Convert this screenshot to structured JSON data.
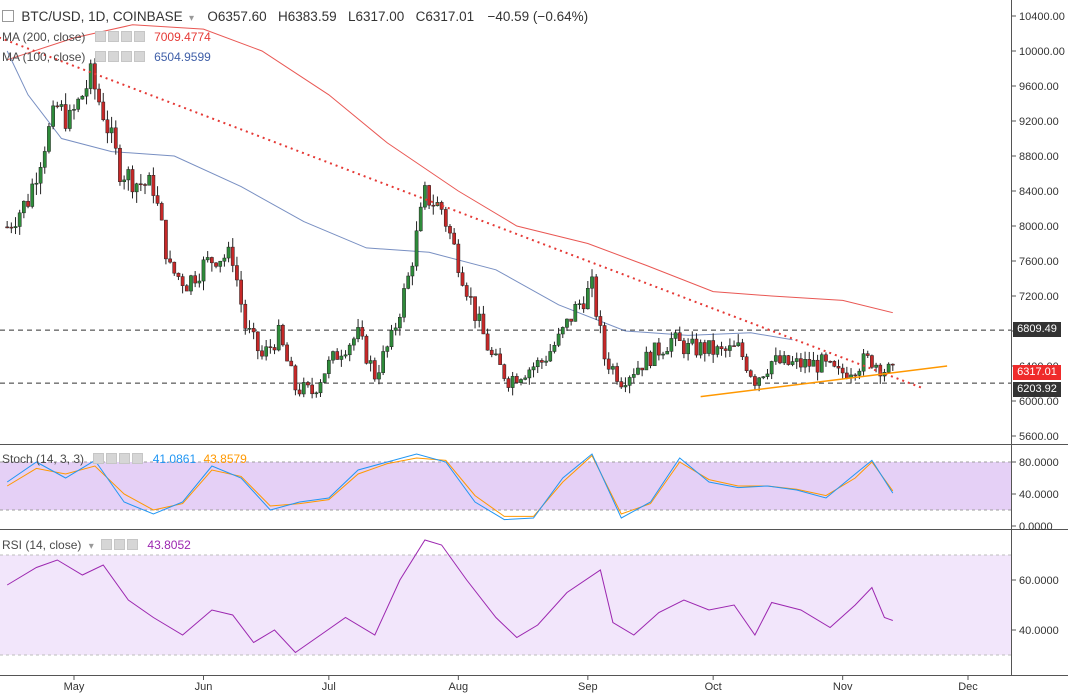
{
  "header": {
    "symbol": "BTC/USD, 1D, COINBASE",
    "ohlc_open_label": "O",
    "ohlc_open": "6357.60",
    "ohlc_high_label": "H",
    "ohlc_high": "6383.59",
    "ohlc_low_label": "L",
    "ohlc_low": "6317.00",
    "ohlc_close_label": "C",
    "ohlc_close": "6317.01",
    "change": "−40.59 (−0.64%)"
  },
  "indicators": {
    "ma200": {
      "label": "MA (200, close)",
      "value": "7009.4774",
      "color": "#e53935"
    },
    "ma100": {
      "label": "MA (100, close)",
      "value": "6504.9599",
      "color": "#3f5fa8"
    },
    "stoch": {
      "label": "Stoch (14, 3, 3)",
      "k_value": "41.0861",
      "d_value": "43.8579",
      "k_color": "#2196f3",
      "d_color": "#ff9800"
    },
    "rsi": {
      "label": "RSI (14, close)",
      "value": "43.8052",
      "color": "#9c27b0"
    }
  },
  "price_tags": {
    "resistance": "6809.49",
    "current": "6317.01",
    "support": "6203.92"
  },
  "colors": {
    "up": "#26a69a",
    "down": "#ef5350",
    "candle_up": "#2e8b3a",
    "candle_down": "#c62828",
    "trendline": "#e53935",
    "support_line": "#ff9800",
    "stoch_band": "#e0c8f5",
    "rsi_band": "#f2e6fb"
  },
  "chart_data": [
    {
      "type": "candlestick",
      "title": "BTC/USD, 1D, COINBASE",
      "x_ticks": [
        "May",
        "Jun",
        "Jul",
        "Aug",
        "Sep",
        "Oct",
        "Nov",
        "Dec"
      ],
      "y_ticks": [
        "10400.00",
        "10000.00",
        "9600.00",
        "9200.00",
        "8800.00",
        "8400.00",
        "8000.00",
        "7600.00",
        "7200.00",
        "6800.00",
        "6400.00",
        "6000.00",
        "5600.00"
      ],
      "ylim": [
        5550,
        10500
      ],
      "horizontal_levels": [
        6809.49,
        6203.92
      ],
      "close_path": [
        {
          "x": "2018-04-15",
          "y": 7990
        },
        {
          "x": "2018-04-20",
          "y": 8300
        },
        {
          "x": "2018-04-24",
          "y": 8950
        },
        {
          "x": "2018-04-27",
          "y": 9350
        },
        {
          "x": "2018-04-30",
          "y": 9200
        },
        {
          "x": "2018-05-05",
          "y": 9700
        },
        {
          "x": "2018-05-08",
          "y": 9300
        },
        {
          "x": "2018-05-12",
          "y": 8650
        },
        {
          "x": "2018-05-16",
          "y": 8500
        },
        {
          "x": "2018-05-20",
          "y": 8450
        },
        {
          "x": "2018-05-24",
          "y": 7500
        },
        {
          "x": "2018-05-28",
          "y": 7350
        },
        {
          "x": "2018-06-01",
          "y": 7550
        },
        {
          "x": "2018-06-04",
          "y": 7650
        },
        {
          "x": "2018-06-08",
          "y": 7650
        },
        {
          "x": "2018-06-11",
          "y": 6850
        },
        {
          "x": "2018-06-15",
          "y": 6500
        },
        {
          "x": "2018-06-19",
          "y": 6750
        },
        {
          "x": "2018-06-23",
          "y": 6150
        },
        {
          "x": "2018-06-27",
          "y": 6100
        },
        {
          "x": "2018-06-30",
          "y": 6350
        },
        {
          "x": "2018-07-04",
          "y": 6600
        },
        {
          "x": "2018-07-08",
          "y": 6750
        },
        {
          "x": "2018-07-12",
          "y": 6300
        },
        {
          "x": "2018-07-16",
          "y": 6700
        },
        {
          "x": "2018-07-20",
          "y": 7400
        },
        {
          "x": "2018-07-24",
          "y": 8350
        },
        {
          "x": "2018-07-28",
          "y": 8200
        },
        {
          "x": "2018-08-01",
          "y": 7600
        },
        {
          "x": "2018-08-05",
          "y": 7000
        },
        {
          "x": "2018-08-09",
          "y": 6500
        },
        {
          "x": "2018-08-13",
          "y": 6250
        },
        {
          "x": "2018-08-17",
          "y": 6350
        },
        {
          "x": "2018-08-21",
          "y": 6450
        },
        {
          "x": "2018-08-25",
          "y": 6700
        },
        {
          "x": "2018-08-29",
          "y": 7050
        },
        {
          "x": "2018-09-02",
          "y": 7300
        },
        {
          "x": "2018-09-05",
          "y": 6500
        },
        {
          "x": "2018-09-09",
          "y": 6250
        },
        {
          "x": "2018-09-13",
          "y": 6400
        },
        {
          "x": "2018-09-17",
          "y": 6550
        },
        {
          "x": "2018-09-21",
          "y": 6700
        },
        {
          "x": "2018-09-25",
          "y": 6600
        },
        {
          "x": "2018-09-29",
          "y": 6600
        },
        {
          "x": "2018-10-03",
          "y": 6550
        },
        {
          "x": "2018-10-07",
          "y": 6600
        },
        {
          "x": "2018-10-11",
          "y": 6250
        },
        {
          "x": "2018-10-15",
          "y": 6450
        },
        {
          "x": "2018-10-19",
          "y": 6420
        },
        {
          "x": "2018-10-23",
          "y": 6420
        },
        {
          "x": "2018-10-27",
          "y": 6420
        },
        {
          "x": "2018-10-31",
          "y": 6300
        },
        {
          "x": "2018-11-03",
          "y": 6380
        },
        {
          "x": "2018-11-06",
          "y": 6450
        },
        {
          "x": "2018-11-08",
          "y": 6470
        },
        {
          "x": "2018-11-11",
          "y": 6360
        },
        {
          "x": "2018-11-13",
          "y": 6317
        }
      ],
      "ma200": [
        {
          "x": "2018-04-15",
          "y": 9900
        },
        {
          "x": "2018-05-01",
          "y": 10150
        },
        {
          "x": "2018-05-15",
          "y": 10300
        },
        {
          "x": "2018-06-01",
          "y": 10250
        },
        {
          "x": "2018-06-15",
          "y": 10000
        },
        {
          "x": "2018-07-01",
          "y": 9500
        },
        {
          "x": "2018-07-15",
          "y": 8950
        },
        {
          "x": "2018-08-01",
          "y": 8400
        },
        {
          "x": "2018-08-15",
          "y": 8000
        },
        {
          "x": "2018-09-01",
          "y": 7800
        },
        {
          "x": "2018-09-15",
          "y": 7550
        },
        {
          "x": "2018-10-01",
          "y": 7250
        },
        {
          "x": "2018-10-15",
          "y": 7200
        },
        {
          "x": "2018-11-01",
          "y": 7150
        },
        {
          "x": "2018-11-13",
          "y": 7009
        }
      ],
      "ma100": [
        {
          "x": "2018-04-15",
          "y": 10000
        },
        {
          "x": "2018-04-20",
          "y": 9500
        },
        {
          "x": "2018-04-28",
          "y": 9000
        },
        {
          "x": "2018-05-10",
          "y": 8850
        },
        {
          "x": "2018-05-25",
          "y": 8800
        },
        {
          "x": "2018-06-10",
          "y": 8450
        },
        {
          "x": "2018-06-25",
          "y": 8050
        },
        {
          "x": "2018-07-10",
          "y": 7750
        },
        {
          "x": "2018-07-25",
          "y": 7700
        },
        {
          "x": "2018-08-10",
          "y": 7500
        },
        {
          "x": "2018-08-25",
          "y": 7100
        },
        {
          "x": "2018-09-10",
          "y": 6800
        },
        {
          "x": "2018-09-25",
          "y": 6750
        },
        {
          "x": "2018-10-10",
          "y": 6780
        },
        {
          "x": "2018-10-20",
          "y": 6700
        }
      ],
      "trendline": [
        {
          "x": "2018-04-05",
          "y": 10300
        },
        {
          "x": "2018-11-20",
          "y": 6150
        }
      ],
      "support_trendline": [
        {
          "x": "2018-09-28",
          "y": 6050
        },
        {
          "x": "2018-11-26",
          "y": 6400
        }
      ]
    },
    {
      "type": "line",
      "title": "Stoch (14, 3, 3)",
      "y_ticks": [
        "80.0000",
        "40.0000",
        "0.0000"
      ],
      "ylim": [
        0,
        100
      ],
      "bands": [
        20,
        80
      ],
      "k_series": [
        {
          "x": "2018-04-15",
          "y": 55
        },
        {
          "x": "2018-04-22",
          "y": 80
        },
        {
          "x": "2018-04-29",
          "y": 60
        },
        {
          "x": "2018-05-06",
          "y": 82
        },
        {
          "x": "2018-05-13",
          "y": 30
        },
        {
          "x": "2018-05-20",
          "y": 15
        },
        {
          "x": "2018-05-27",
          "y": 30
        },
        {
          "x": "2018-06-03",
          "y": 75
        },
        {
          "x": "2018-06-10",
          "y": 60
        },
        {
          "x": "2018-06-17",
          "y": 20
        },
        {
          "x": "2018-06-24",
          "y": 30
        },
        {
          "x": "2018-07-01",
          "y": 35
        },
        {
          "x": "2018-07-08",
          "y": 70
        },
        {
          "x": "2018-07-15",
          "y": 80
        },
        {
          "x": "2018-07-22",
          "y": 90
        },
        {
          "x": "2018-07-29",
          "y": 80
        },
        {
          "x": "2018-08-05",
          "y": 30
        },
        {
          "x": "2018-08-12",
          "y": 8
        },
        {
          "x": "2018-08-19",
          "y": 10
        },
        {
          "x": "2018-08-26",
          "y": 60
        },
        {
          "x": "2018-09-02",
          "y": 90
        },
        {
          "x": "2018-09-09",
          "y": 10
        },
        {
          "x": "2018-09-16",
          "y": 30
        },
        {
          "x": "2018-09-23",
          "y": 85
        },
        {
          "x": "2018-09-30",
          "y": 55
        },
        {
          "x": "2018-10-07",
          "y": 48
        },
        {
          "x": "2018-10-14",
          "y": 50
        },
        {
          "x": "2018-10-21",
          "y": 45
        },
        {
          "x": "2018-10-28",
          "y": 35
        },
        {
          "x": "2018-11-04",
          "y": 65
        },
        {
          "x": "2018-11-08",
          "y": 82
        },
        {
          "x": "2018-11-13",
          "y": 41.0861
        }
      ],
      "d_series": [
        {
          "x": "2018-04-15",
          "y": 50
        },
        {
          "x": "2018-04-22",
          "y": 72
        },
        {
          "x": "2018-04-29",
          "y": 65
        },
        {
          "x": "2018-05-06",
          "y": 75
        },
        {
          "x": "2018-05-13",
          "y": 40
        },
        {
          "x": "2018-05-20",
          "y": 20
        },
        {
          "x": "2018-05-27",
          "y": 28
        },
        {
          "x": "2018-06-03",
          "y": 70
        },
        {
          "x": "2018-06-10",
          "y": 62
        },
        {
          "x": "2018-06-17",
          "y": 25
        },
        {
          "x": "2018-06-24",
          "y": 28
        },
        {
          "x": "2018-07-01",
          "y": 33
        },
        {
          "x": "2018-07-08",
          "y": 65
        },
        {
          "x": "2018-07-15",
          "y": 78
        },
        {
          "x": "2018-07-22",
          "y": 85
        },
        {
          "x": "2018-07-29",
          "y": 82
        },
        {
          "x": "2018-08-05",
          "y": 38
        },
        {
          "x": "2018-08-12",
          "y": 12
        },
        {
          "x": "2018-08-19",
          "y": 12
        },
        {
          "x": "2018-08-26",
          "y": 55
        },
        {
          "x": "2018-09-02",
          "y": 88
        },
        {
          "x": "2018-09-09",
          "y": 15
        },
        {
          "x": "2018-09-16",
          "y": 28
        },
        {
          "x": "2018-09-23",
          "y": 80
        },
        {
          "x": "2018-09-30",
          "y": 58
        },
        {
          "x": "2018-10-07",
          "y": 50
        },
        {
          "x": "2018-10-14",
          "y": 50
        },
        {
          "x": "2018-10-21",
          "y": 46
        },
        {
          "x": "2018-10-28",
          "y": 38
        },
        {
          "x": "2018-11-04",
          "y": 60
        },
        {
          "x": "2018-11-08",
          "y": 80
        },
        {
          "x": "2018-11-13",
          "y": 43.8579
        }
      ]
    },
    {
      "type": "line",
      "title": "RSI (14, close)",
      "y_ticks": [
        "60.0000",
        "40.0000"
      ],
      "ylim": [
        15,
        85
      ],
      "bands": [
        30,
        70
      ],
      "series": [
        {
          "x": "2018-04-15",
          "y": 58
        },
        {
          "x": "2018-04-22",
          "y": 65
        },
        {
          "x": "2018-04-27",
          "y": 68
        },
        {
          "x": "2018-05-03",
          "y": 62
        },
        {
          "x": "2018-05-08",
          "y": 66
        },
        {
          "x": "2018-05-14",
          "y": 52
        },
        {
          "x": "2018-05-20",
          "y": 45
        },
        {
          "x": "2018-05-27",
          "y": 38
        },
        {
          "x": "2018-06-03",
          "y": 48
        },
        {
          "x": "2018-06-08",
          "y": 46
        },
        {
          "x": "2018-06-13",
          "y": 35
        },
        {
          "x": "2018-06-18",
          "y": 40
        },
        {
          "x": "2018-06-23",
          "y": 31
        },
        {
          "x": "2018-06-29",
          "y": 38
        },
        {
          "x": "2018-07-05",
          "y": 45
        },
        {
          "x": "2018-07-12",
          "y": 38
        },
        {
          "x": "2018-07-18",
          "y": 60
        },
        {
          "x": "2018-07-24",
          "y": 76
        },
        {
          "x": "2018-07-28",
          "y": 74
        },
        {
          "x": "2018-08-03",
          "y": 60
        },
        {
          "x": "2018-08-10",
          "y": 45
        },
        {
          "x": "2018-08-15",
          "y": 37
        },
        {
          "x": "2018-08-20",
          "y": 42
        },
        {
          "x": "2018-08-27",
          "y": 55
        },
        {
          "x": "2018-09-04",
          "y": 64
        },
        {
          "x": "2018-09-07",
          "y": 43
        },
        {
          "x": "2018-09-12",
          "y": 38
        },
        {
          "x": "2018-09-18",
          "y": 47
        },
        {
          "x": "2018-09-24",
          "y": 52
        },
        {
          "x": "2018-09-30",
          "y": 48
        },
        {
          "x": "2018-10-06",
          "y": 50
        },
        {
          "x": "2018-10-11",
          "y": 38
        },
        {
          "x": "2018-10-15",
          "y": 51
        },
        {
          "x": "2018-10-22",
          "y": 48
        },
        {
          "x": "2018-10-29",
          "y": 41
        },
        {
          "x": "2018-11-04",
          "y": 50
        },
        {
          "x": "2018-11-08",
          "y": 57
        },
        {
          "x": "2018-11-11",
          "y": 45
        },
        {
          "x": "2018-11-13",
          "y": 43.8052
        }
      ]
    }
  ]
}
